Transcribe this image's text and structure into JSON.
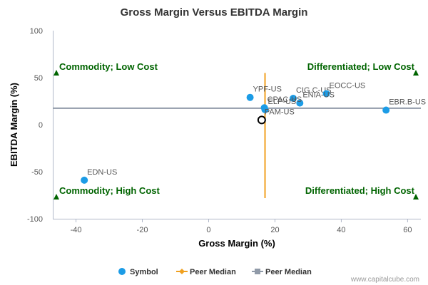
{
  "chart_data": {
    "type": "scatter",
    "title": "Gross Margin Versus EBITDA Margin",
    "xlabel": "Gross Margin (%)",
    "ylabel": "EBITDA Margin (%)",
    "xlim": [
      -47,
      64
    ],
    "ylim": [
      -100,
      100
    ],
    "xticks": [
      "-40",
      "-20",
      "0",
      "20",
      "40",
      "60"
    ],
    "xtick_values": [
      -40,
      -20,
      0,
      20,
      40,
      60
    ],
    "yticks": [
      "100",
      "50",
      "0",
      "-50",
      "-100"
    ],
    "ytick_values": [
      100,
      50,
      0,
      -50,
      -100
    ],
    "grid": false,
    "points": [
      {
        "label": "YPF-US",
        "x": 12.5,
        "y": 29
      },
      {
        "label": "CIG.C-US",
        "x": 25.5,
        "y": 28
      },
      {
        "label": "EOCC-US",
        "x": 35.5,
        "y": 33
      },
      {
        "label": "ENIA-US",
        "x": 27.5,
        "y": 23
      },
      {
        "label": "EBR.B-US",
        "x": 53.5,
        "y": 15.5
      },
      {
        "label": "CPAC-US",
        "x": 16.8,
        "y": 18
      },
      {
        "label": "ELP-US",
        "x": 17,
        "y": 16
      },
      {
        "label": "PAM-US",
        "x": 16,
        "y": 5,
        "hollow": true
      },
      {
        "label": "EDN-US",
        "x": -37.5,
        "y": -59
      }
    ],
    "peer_median": {
      "x": 17,
      "y": 17.5
    },
    "vertical_line_y_range": [
      -78,
      55
    ],
    "quadrants": {
      "top_left": "Commodity; Low Cost",
      "top_right": "Differentiated; Low Cost",
      "bottom_left": "Commodity; High Cost",
      "bottom_right": "Differentiated; High Cost"
    },
    "legend": [
      {
        "label": "Symbol",
        "color": "#1c9ce6",
        "marker": "circle"
      },
      {
        "label": "Peer Median",
        "color": "#f0a020",
        "marker": "diamond-line"
      },
      {
        "label": "Peer Median",
        "color": "#909aa8",
        "marker": "square-line"
      }
    ],
    "legend_position": "bottom-center"
  },
  "credit": "www.capitalcube.com",
  "colors": {
    "point": "#1c9ce6",
    "vertical_median": "#f0a020",
    "horizontal_median": "#909aa8",
    "quadrant_text": "#006400",
    "axis": "#b0b8c8"
  }
}
